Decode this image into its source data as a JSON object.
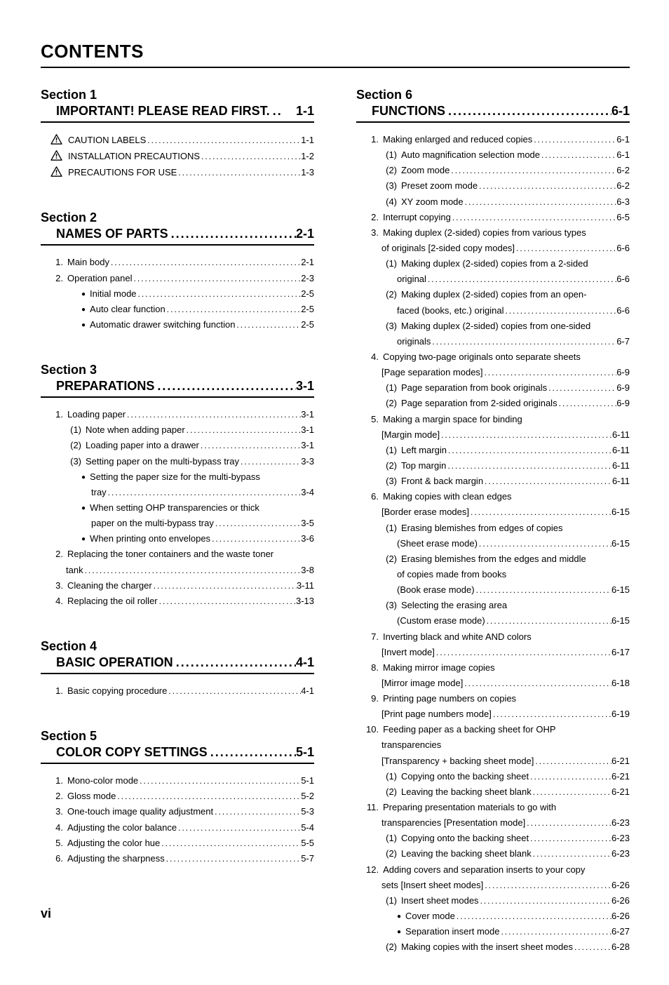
{
  "title": "CONTENTS",
  "page_number": "vi",
  "dots_run": "............................................................................................................................",
  "section_dots_run": "...............................................................",
  "sections": [
    {
      "label": "Section 1",
      "title": "IMPORTANT! PLEASE READ FIRST.",
      "page": "1-1",
      "column": "left",
      "title_dots": "..",
      "entries": [
        {
          "level": 0,
          "warn": true,
          "text": "CAUTION LABELS",
          "page": "1-1"
        },
        {
          "level": 0,
          "warn": true,
          "text": "INSTALLATION  PRECAUTIONS",
          "page": "1-2"
        },
        {
          "level": 0,
          "warn": true,
          "text": "PRECAUTIONS FOR USE",
          "page": "1-3"
        }
      ]
    },
    {
      "label": "Section 2",
      "title": "NAMES OF PARTS",
      "page": "2-1",
      "column": "left",
      "entries": [
        {
          "level": 0,
          "num": "1.",
          "text": "Main body",
          "page": "2-1"
        },
        {
          "level": 0,
          "num": "2.",
          "text": "Operation panel",
          "page": "2-3"
        },
        {
          "level": 2,
          "bullet": true,
          "text": "Initial mode",
          "page": "2-5"
        },
        {
          "level": 2,
          "bullet": true,
          "text": "Auto clear function",
          "page": "2-5"
        },
        {
          "level": 2,
          "bullet": true,
          "text": "Automatic drawer switching function",
          "page": "2-5"
        }
      ]
    },
    {
      "label": "Section 3",
      "title": "PREPARATIONS",
      "page": "3-1",
      "column": "left",
      "entries": [
        {
          "level": 0,
          "num": "1.",
          "text": "Loading paper",
          "page": "3-1"
        },
        {
          "level": 1,
          "sub": "(1)",
          "text": "Note when adding paper",
          "page": "3-1"
        },
        {
          "level": 1,
          "sub": "(2)",
          "text": "Loading paper into a drawer",
          "page": "3-1"
        },
        {
          "level": 1,
          "sub": "(3)",
          "text": "Setting paper on the multi-bypass tray",
          "page": "3-3"
        },
        {
          "level": 2,
          "bullet": true,
          "text": "Setting the paper size for the multi-bypass",
          "nopage": true
        },
        {
          "level": 3,
          "text": "tray",
          "page": "3-4"
        },
        {
          "level": 2,
          "bullet": true,
          "text": "When setting OHP transparencies or thick",
          "nopage": true
        },
        {
          "level": 3,
          "text": "paper on the multi-bypass tray",
          "page": "3-5"
        },
        {
          "level": 2,
          "bullet": true,
          "text": "When printing onto envelopes",
          "page": "3-6"
        },
        {
          "level": 0,
          "num": "2.",
          "text": "Replacing the toner containers and the waste toner",
          "nopage": true
        },
        {
          "level": 1,
          "text": "tank",
          "page": "3-8"
        },
        {
          "level": 0,
          "num": "3.",
          "text": "Cleaning the charger",
          "page": "3-11"
        },
        {
          "level": 0,
          "num": "4.",
          "text": "Replacing the oil roller",
          "page": "3-13"
        }
      ]
    },
    {
      "label": "Section 4",
      "title": "BASIC OPERATION",
      "page": "4-1",
      "column": "left",
      "entries": [
        {
          "level": 0,
          "num": "1.",
          "text": "Basic copying procedure",
          "page": "4-1"
        }
      ]
    },
    {
      "label": "Section 5",
      "title": "COLOR COPY SETTINGS",
      "page": "5-1",
      "column": "left",
      "entries": [
        {
          "level": 0,
          "num": "1.",
          "text": "Mono-color mode",
          "page": "5-1"
        },
        {
          "level": 0,
          "num": "2.",
          "text": "Gloss mode",
          "page": "5-2"
        },
        {
          "level": 0,
          "num": "3.",
          "text": "One-touch image quality adjustment",
          "page": "5-3"
        },
        {
          "level": 0,
          "num": "4.",
          "text": "Adjusting the color balance",
          "page": "5-4"
        },
        {
          "level": 0,
          "num": "5.",
          "text": "Adjusting the color hue",
          "page": "5-5"
        },
        {
          "level": 0,
          "num": "6.",
          "text": "Adjusting the sharpness",
          "page": "5-7"
        }
      ]
    },
    {
      "label": "Section 6",
      "title": "FUNCTIONS",
      "page": "6-1",
      "column": "right",
      "entries": [
        {
          "level": 0,
          "num": "1.",
          "text": "Making enlarged and reduced copies",
          "page": "6-1"
        },
        {
          "level": 1,
          "sub": "(1)",
          "text": "Auto magnification selection mode",
          "page": "6-1"
        },
        {
          "level": 1,
          "sub": "(2)",
          "text": "Zoom mode",
          "page": "6-2"
        },
        {
          "level": 1,
          "sub": "(3)",
          "text": "Preset zoom mode",
          "page": "6-2"
        },
        {
          "level": 1,
          "sub": "(4)",
          "text": "XY zoom mode",
          "page": "6-3"
        },
        {
          "level": 0,
          "num": "2.",
          "text": "Interrupt copying",
          "page": "6-5"
        },
        {
          "level": 0,
          "num": "3.",
          "text": "Making duplex (2-sided) copies from various types",
          "nopage": true
        },
        {
          "level": 1,
          "text": "of originals [2-sided copy modes]",
          "page": "6-6"
        },
        {
          "level": 1,
          "sub": "(1)",
          "text": "Making duplex (2-sided) copies from a 2-sided",
          "nopage": true
        },
        {
          "level": 2,
          "text": "original",
          "page": "6-6"
        },
        {
          "level": 1,
          "sub": "(2)",
          "text": "Making duplex (2-sided) copies from an open-",
          "nopage": true
        },
        {
          "level": 2,
          "text": "faced (books, etc.) original",
          "page": "6-6"
        },
        {
          "level": 1,
          "sub": "(3)",
          "text": "Making duplex (2-sided) copies from one-sided",
          "nopage": true
        },
        {
          "level": 2,
          "text": "originals",
          "page": "6-7"
        },
        {
          "level": 0,
          "num": "4.",
          "text": "Copying two-page originals onto separate sheets",
          "nopage": true
        },
        {
          "level": 1,
          "text": "[Page separation modes]",
          "page": "6-9"
        },
        {
          "level": 1,
          "sub": "(1)",
          "text": "Page separation from book originals",
          "page": "6-9"
        },
        {
          "level": 1,
          "sub": "(2)",
          "text": "Page separation from 2-sided originals",
          "page": "6-9"
        },
        {
          "level": 0,
          "num": "5.",
          "text": "Making a margin space for binding",
          "nopage": true
        },
        {
          "level": 1,
          "text": "[Margin mode]",
          "page": "6-11"
        },
        {
          "level": 1,
          "sub": "(1)",
          "text": "Left margin",
          "page": "6-11"
        },
        {
          "level": 1,
          "sub": "(2)",
          "text": "Top margin",
          "page": "6-11"
        },
        {
          "level": 1,
          "sub": "(3)",
          "text": "Front & back margin",
          "nosubspace": true,
          "page": "6-11"
        },
        {
          "level": 0,
          "num": "6.",
          "text": "Making copies with clean edges",
          "nopage": true
        },
        {
          "level": 1,
          "text": "[Border erase modes]",
          "page": "6-15"
        },
        {
          "level": 1,
          "sub": "(1)",
          "text": "Erasing blemishes from edges of copies",
          "nopage": true
        },
        {
          "level": 2,
          "text": "(Sheet erase mode)",
          "page": "6-15"
        },
        {
          "level": 1,
          "sub": "(2)",
          "text": "Erasing blemishes from the edges and middle",
          "nopage": true
        },
        {
          "level": 2,
          "text": "of copies made from books",
          "nopage": true
        },
        {
          "level": 2,
          "text": "(Book erase mode)",
          "page": "6-15"
        },
        {
          "level": 1,
          "sub": "(3)",
          "text": "Selecting the erasing area",
          "nopage": true
        },
        {
          "level": 2,
          "text": "(Custom erase mode)",
          "page": "6-15"
        },
        {
          "level": 0,
          "num": "7.",
          "text": "Inverting black and white AND colors",
          "nopage": true
        },
        {
          "level": 1,
          "text": "[Invert mode]",
          "page": "6-17"
        },
        {
          "level": 0,
          "num": "8.",
          "text": "Making mirror image copies",
          "nopage": true
        },
        {
          "level": 1,
          "text": "[Mirror image mode]",
          "page": "6-18"
        },
        {
          "level": 0,
          "num": "9.",
          "text": "Printing page numbers on copies",
          "nopage": true
        },
        {
          "level": 1,
          "text": "[Print page numbers mode]",
          "page": "6-19"
        },
        {
          "level": 0,
          "num": "10.",
          "text": "Feeding paper as a backing sheet for OHP",
          "nopage": true
        },
        {
          "level": 1,
          "text": "transparencies",
          "nopage": true
        },
        {
          "level": 1,
          "text": "[Transparency + backing sheet mode]",
          "page": "6-21"
        },
        {
          "level": 1,
          "sub": "(1)",
          "text": "Copying onto the backing sheet",
          "page": "6-21"
        },
        {
          "level": 1,
          "sub": "(2)",
          "text": "Leaving the backing sheet blank",
          "page": "6-21"
        },
        {
          "level": 0,
          "num": "11.",
          "text": "Preparing presentation materials to go with",
          "nopage": true
        },
        {
          "level": 1,
          "text": "transparencies [Presentation mode]",
          "page": "6-23"
        },
        {
          "level": 1,
          "sub": "(1)",
          "text": "Copying onto the backing sheet",
          "page": "6-23"
        },
        {
          "level": 1,
          "sub": "(2)",
          "text": "Leaving the backing sheet blank",
          "page": "6-23"
        },
        {
          "level": 0,
          "num": "12.",
          "text": "Adding covers and separation inserts to your copy",
          "nopage": true
        },
        {
          "level": 1,
          "text": "sets [Insert sheet modes]",
          "page": "6-26"
        },
        {
          "level": 1,
          "sub": "(1)",
          "text": "Insert sheet modes",
          "page": "6-26"
        },
        {
          "level": 2,
          "bullet": true,
          "text": "Cover mode",
          "page": "6-26"
        },
        {
          "level": 2,
          "bullet": true,
          "text": "Separation insert mode",
          "page": "6-27"
        },
        {
          "level": 1,
          "sub": "(2)",
          "text": "Making copies with the insert sheet modes",
          "page": "6-28"
        }
      ]
    }
  ]
}
